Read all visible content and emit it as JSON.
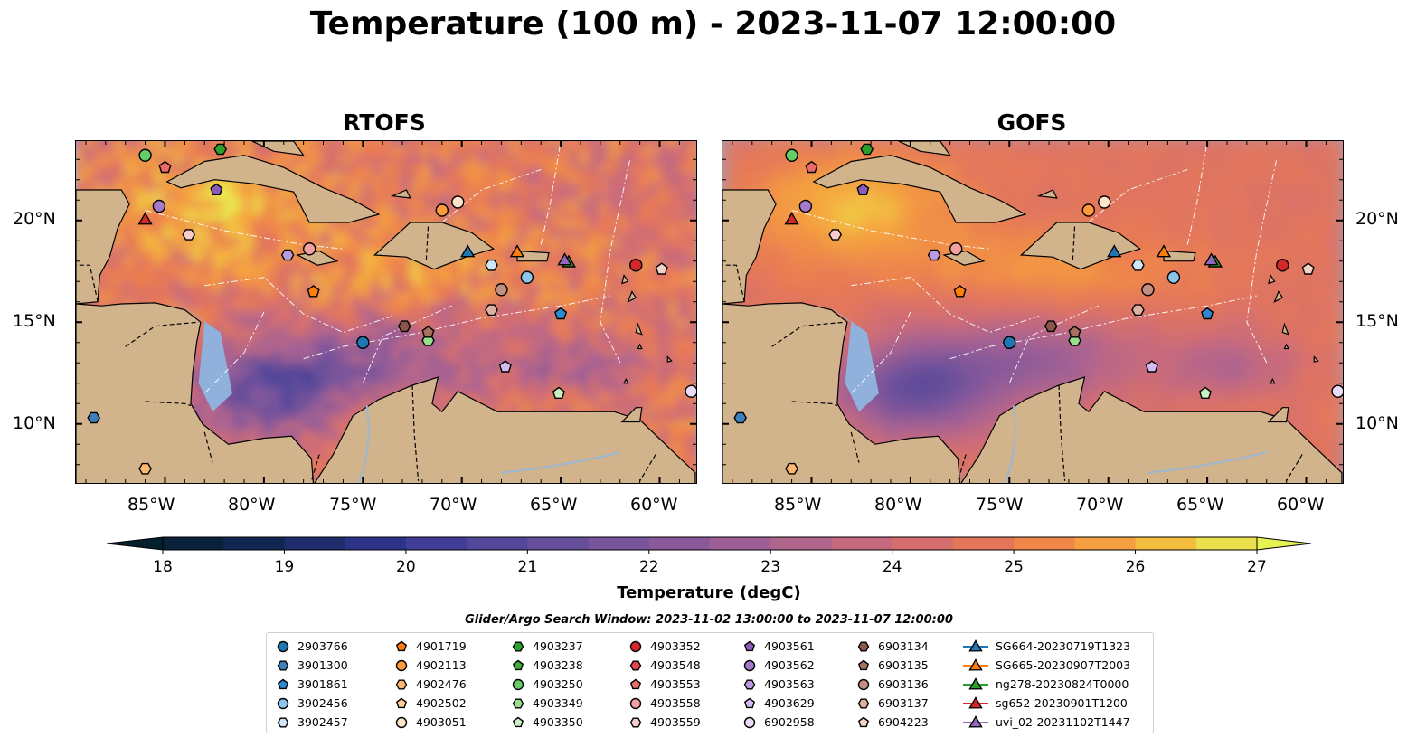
{
  "title": "Temperature (100 m) - 2023-11-07 12:00:00",
  "panels": [
    {
      "title": "RTOFS",
      "model": "rtofs"
    },
    {
      "title": "GOFS",
      "model": "gofs"
    }
  ],
  "lat_ticks": [
    "20°N",
    "15°N",
    "10°N"
  ],
  "lon_ticks": [
    "85°W",
    "80°W",
    "75°W",
    "70°W",
    "65°W",
    "60°W"
  ],
  "colorbar": {
    "label": "Temperature (degC)",
    "ticks": [
      "18",
      "19",
      "20",
      "21",
      "22",
      "23",
      "24",
      "25",
      "26",
      "27"
    ],
    "min": 18,
    "max": 27,
    "extend": "both",
    "colormap": "thermal"
  },
  "search_window": "Glider/Argo Search Window: 2023-11-02 13:00:00 to 2023-11-07 12:00:00",
  "legend": [
    {
      "label": "2903766",
      "marker": "circle",
      "color": "#1f77b4"
    },
    {
      "label": "3901300",
      "marker": "hexagon",
      "color": "#3c7fb9"
    },
    {
      "label": "3901861",
      "marker": "pentagon",
      "color": "#2d8ad0"
    },
    {
      "label": "3902456",
      "marker": "circle",
      "color": "#8ec4ea"
    },
    {
      "label": "3902457",
      "marker": "hexagon",
      "color": "#cfe7f8"
    },
    {
      "label": "4901719",
      "marker": "pentagon",
      "color": "#ff7f0e"
    },
    {
      "label": "4902113",
      "marker": "circle",
      "color": "#ff9a3c"
    },
    {
      "label": "4902476",
      "marker": "hexagon",
      "color": "#ffb870"
    },
    {
      "label": "4902502",
      "marker": "pentagon",
      "color": "#ffcf99"
    },
    {
      "label": "4903051",
      "marker": "circle",
      "color": "#ffe5c8"
    },
    {
      "label": "4903237",
      "marker": "hexagon",
      "color": "#2ca02c"
    },
    {
      "label": "4903238",
      "marker": "pentagon",
      "color": "#3fae3f"
    },
    {
      "label": "4903250",
      "marker": "circle",
      "color": "#66cc66"
    },
    {
      "label": "4903349",
      "marker": "hexagon",
      "color": "#98df8a"
    },
    {
      "label": "4903350",
      "marker": "pentagon",
      "color": "#c8f0c0"
    },
    {
      "label": "4903352",
      "marker": "circle",
      "color": "#d62728"
    },
    {
      "label": "4903548",
      "marker": "hexagon",
      "color": "#e0474a"
    },
    {
      "label": "4903553",
      "marker": "pentagon",
      "color": "#ec6a6a"
    },
    {
      "label": "4903558",
      "marker": "circle",
      "color": "#f3a0a0"
    },
    {
      "label": "4903559",
      "marker": "hexagon",
      "color": "#f8cccc"
    },
    {
      "label": "4903561",
      "marker": "pentagon",
      "color": "#8c5ab8"
    },
    {
      "label": "4903562",
      "marker": "circle",
      "color": "#a47bcc"
    },
    {
      "label": "4903563",
      "marker": "hexagon",
      "color": "#bb9be0"
    },
    {
      "label": "4903629",
      "marker": "pentagon",
      "color": "#d3bdf0"
    },
    {
      "label": "6902958",
      "marker": "circle",
      "color": "#e9dcfa"
    },
    {
      "label": "6903134",
      "marker": "hexagon",
      "color": "#8c564b"
    },
    {
      "label": "6903135",
      "marker": "pentagon",
      "color": "#a8705f"
    },
    {
      "label": "6903136",
      "marker": "circle",
      "color": "#c38f80"
    },
    {
      "label": "6903137",
      "marker": "hexagon",
      "color": "#e0b0a3"
    },
    {
      "label": "6904223",
      "marker": "pentagon",
      "color": "#f4d2c6"
    },
    {
      "label": "SG664-20230719T1323",
      "marker": "triangle-line",
      "color": "#1f77b4"
    },
    {
      "label": "SG665-20230907T2003",
      "marker": "triangle-line",
      "color": "#ff7f0e"
    },
    {
      "label": "ng278-20230824T0000",
      "marker": "triangle-line",
      "color": "#2ca02c"
    },
    {
      "label": "sg652-20230901T1200",
      "marker": "triangle-line",
      "color": "#d62728"
    },
    {
      "label": "uvi_02-20231102T1447",
      "marker": "triangle-line",
      "color": "#9467bd"
    }
  ],
  "observations": [
    {
      "id": "2903766",
      "lon": -75.0,
      "lat": 14.0
    },
    {
      "id": "3901300",
      "lon": -88.6,
      "lat": 10.3
    },
    {
      "id": "3901861",
      "lon": -65.0,
      "lat": 15.4
    },
    {
      "id": "3902456",
      "lon": -66.7,
      "lat": 17.2
    },
    {
      "id": "3902457",
      "lon": -68.5,
      "lat": 17.8
    },
    {
      "id": "4901719",
      "lon": -77.5,
      "lat": 16.5
    },
    {
      "id": "4902113",
      "lon": -71.0,
      "lat": 20.5
    },
    {
      "id": "4902476",
      "lon": -86.0,
      "lat": 7.8
    },
    {
      "id": "4903051",
      "lon": -70.2,
      "lat": 20.9
    },
    {
      "id": "4903237",
      "lon": -82.2,
      "lat": 23.5
    },
    {
      "id": "4903250",
      "lon": -86.0,
      "lat": 23.2
    },
    {
      "id": "4903349",
      "lon": -71.7,
      "lat": 14.1
    },
    {
      "id": "4903350",
      "lon": -65.1,
      "lat": 11.5
    },
    {
      "id": "4903352",
      "lon": -61.2,
      "lat": 17.8
    },
    {
      "id": "4903553",
      "lon": -85.0,
      "lat": 22.6
    },
    {
      "id": "4903558",
      "lon": -77.7,
      "lat": 18.6
    },
    {
      "id": "4903559",
      "lon": -83.8,
      "lat": 19.3
    },
    {
      "id": "4903561",
      "lon": -82.4,
      "lat": 21.5
    },
    {
      "id": "4903562",
      "lon": -85.3,
      "lat": 20.7
    },
    {
      "id": "4903563",
      "lon": -78.8,
      "lat": 18.3
    },
    {
      "id": "4903629",
      "lon": -67.8,
      "lat": 12.8
    },
    {
      "id": "6902958",
      "lon": -58.4,
      "lat": 11.6
    },
    {
      "id": "6903134",
      "lon": -72.9,
      "lat": 14.8
    },
    {
      "id": "6903135",
      "lon": -71.7,
      "lat": 14.5
    },
    {
      "id": "6903136",
      "lon": -68.0,
      "lat": 16.6
    },
    {
      "id": "6903137",
      "lon": -68.5,
      "lat": 15.6
    },
    {
      "id": "6904223",
      "lon": -59.9,
      "lat": 17.6
    },
    {
      "id": "SG664-20230719T1323",
      "lon": -69.7,
      "lat": 18.4
    },
    {
      "id": "SG665-20230907T2003",
      "lon": -67.2,
      "lat": 18.4
    },
    {
      "id": "ng278-20230824T0000",
      "lon": -64.6,
      "lat": 17.9
    },
    {
      "id": "sg652-20230901T1200",
      "lon": -86.0,
      "lat": 20.0
    },
    {
      "id": "uvi_02-20231102T1447",
      "lon": -64.8,
      "lat": 18.0
    }
  ]
}
